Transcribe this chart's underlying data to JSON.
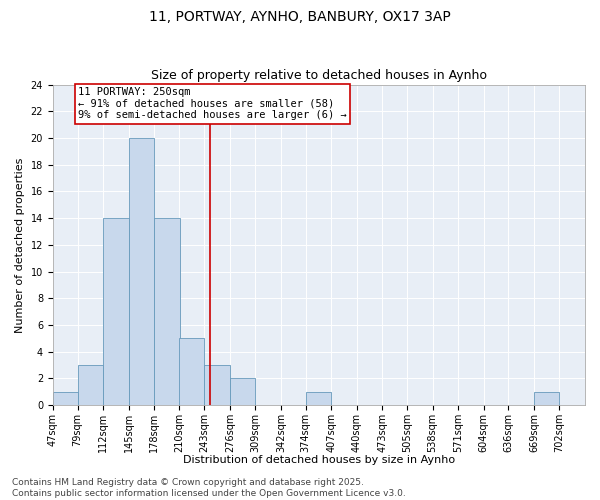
{
  "title_line1": "11, PORTWAY, AYNHO, BANBURY, OX17 3AP",
  "title_line2": "Size of property relative to detached houses in Aynho",
  "xlabel": "Distribution of detached houses by size in Aynho",
  "ylabel": "Number of detached properties",
  "bar_color": "#c8d8ec",
  "bar_edge_color": "#6699bb",
  "background_color": "#e8eef6",
  "bins": [
    "47sqm",
    "79sqm",
    "112sqm",
    "145sqm",
    "178sqm",
    "210sqm",
    "243sqm",
    "276sqm",
    "309sqm",
    "342sqm",
    "374sqm",
    "407sqm",
    "440sqm",
    "473sqm",
    "505sqm",
    "538sqm",
    "571sqm",
    "604sqm",
    "636sqm",
    "669sqm",
    "702sqm"
  ],
  "bin_edges": [
    47,
    79,
    112,
    145,
    178,
    210,
    243,
    276,
    309,
    342,
    374,
    407,
    440,
    473,
    505,
    538,
    571,
    604,
    636,
    669,
    702
  ],
  "bin_width": 33,
  "counts": [
    1,
    3,
    14,
    20,
    14,
    5,
    3,
    2,
    0,
    0,
    1,
    0,
    0,
    0,
    0,
    0,
    0,
    0,
    0,
    1
  ],
  "ylim": [
    0,
    24
  ],
  "yticks": [
    0,
    2,
    4,
    6,
    8,
    10,
    12,
    14,
    16,
    18,
    20,
    22,
    24
  ],
  "property_line_x": 250,
  "annotation_text": "11 PORTWAY: 250sqm\n← 91% of detached houses are smaller (58)\n9% of semi-detached houses are larger (6) →",
  "annotation_box_color": "#ffffff",
  "annotation_border_color": "#cc0000",
  "line_color": "#cc0000",
  "footer_text": "Contains HM Land Registry data © Crown copyright and database right 2025.\nContains public sector information licensed under the Open Government Licence v3.0.",
  "title_fontsize": 10,
  "subtitle_fontsize": 9,
  "axis_label_fontsize": 8,
  "tick_fontsize": 7,
  "annotation_fontsize": 7.5,
  "footer_fontsize": 6.5
}
